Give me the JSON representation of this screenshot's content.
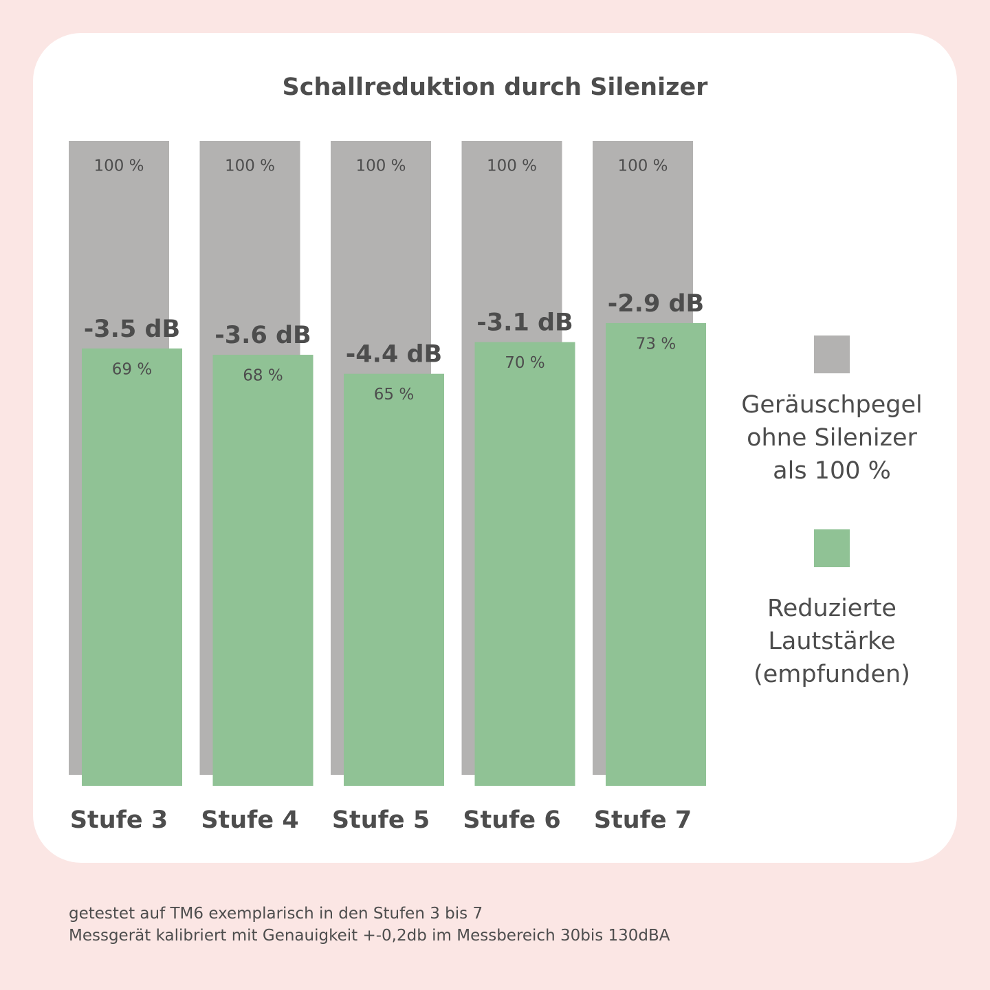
{
  "chart_data": {
    "type": "bar",
    "title": "Schallreduktion durch Silenizer",
    "categories": [
      "Stufe 3",
      "Stufe 4",
      "Stufe 5",
      "Stufe 6",
      "Stufe 7"
    ],
    "series": [
      {
        "name": "Geräuschpegel ohne Silenizer als 100 %",
        "color": "#b3b2b1",
        "values": [
          100,
          100,
          100,
          100,
          100
        ],
        "value_labels": [
          "100 %",
          "100 %",
          "100 %",
          "100 %",
          "100 %"
        ]
      },
      {
        "name": "Reduzierte Lautstärke (empfunden)",
        "color": "#90c295",
        "values": [
          69,
          68,
          65,
          70,
          73
        ],
        "value_labels": [
          "69 %",
          "68 %",
          "65 %",
          "70 %",
          "73 %"
        ]
      }
    ],
    "annotations": [
      "-3.5 dB",
      "-3.6 dB",
      "-4.4 dB",
      "-3.1 dB",
      "-2.9 dB"
    ],
    "ylim": [
      0,
      100
    ],
    "notes": [
      "getestet auf TM6 exemplarisch in den Stufen 3 bis 7",
      "Messgerät kalibriert mit Genauigkeit +-0,2db im Messbereich 30bis 130dBA"
    ]
  }
}
